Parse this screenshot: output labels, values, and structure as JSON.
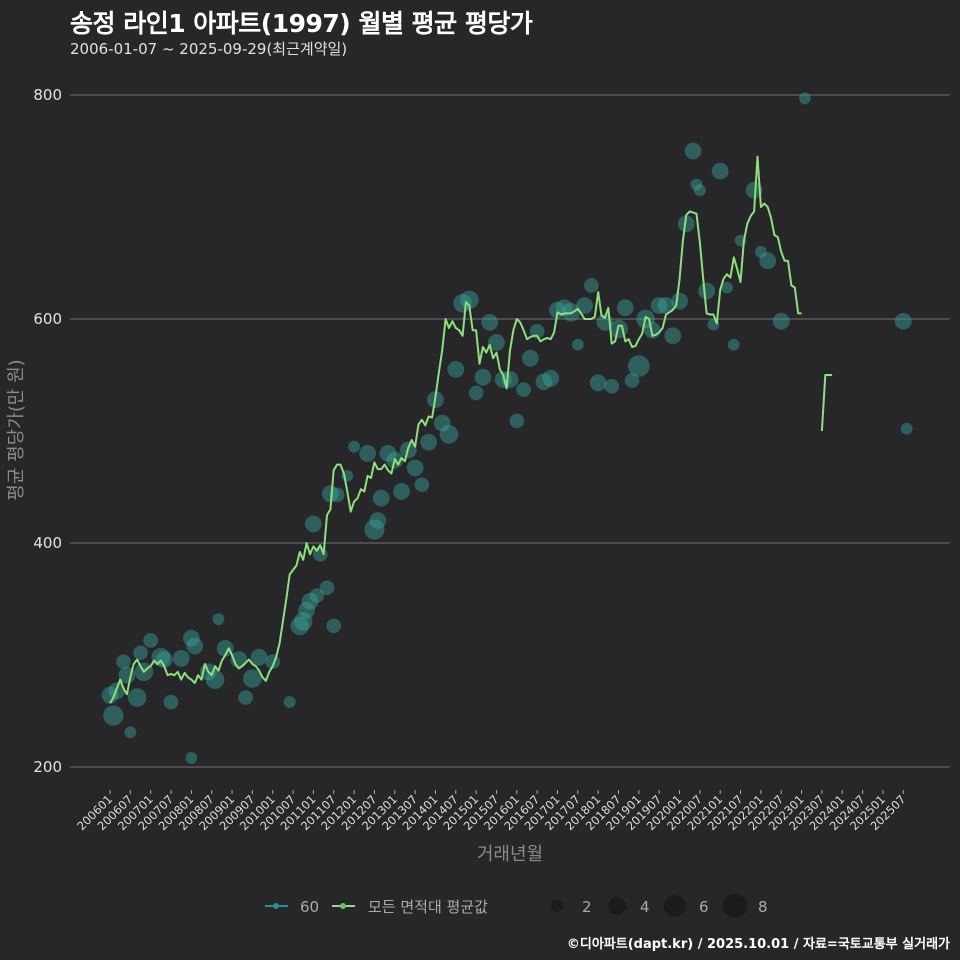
{
  "header": {
    "title": "송정 라인1 아파트(1997) 월별 평균 평당가",
    "subtitle": "2006-01-07 ~ 2025-09-29(최근계약일)"
  },
  "footer": {
    "credit": "©디아파트(dapt.kr) / 2025.10.01 / 자료=국토교통부 실거래가"
  },
  "colors": {
    "background": "#27272a",
    "line": "#8ee07c",
    "bubble": "#3aa39a",
    "grid": "#8a8a8a"
  },
  "legend": {
    "series": [
      {
        "label": "60",
        "color": "#2b8f8a"
      },
      {
        "label": "모든 면적대 평균값",
        "color": "#8ee07c"
      }
    ],
    "size_labels": [
      "2",
      "4",
      "6",
      "8"
    ]
  },
  "chart_data": {
    "type": "line",
    "title": "송정 라인1 아파트(1997) 월별 평균 평당가",
    "subtitle": "2006-01-07 ~ 2025-09-29(최근계약일)",
    "xlabel": "거래년월",
    "ylabel": "평균 평당가(만 원)",
    "ylim": [
      190,
      815
    ],
    "yticks": [
      200,
      400,
      600,
      800
    ],
    "xticks": [
      "200601",
      "200607",
      "200701",
      "200707",
      "200801",
      "200807",
      "200901",
      "200907",
      "201001",
      "201007",
      "201101",
      "201107",
      "201201",
      "201207",
      "201301",
      "201307",
      "201401",
      "201407",
      "201501",
      "201507",
      "201601",
      "201607",
      "201701",
      "201707",
      "201801",
      "201807",
      "201901",
      "201907",
      "202001",
      "202007",
      "202101",
      "202107",
      "202201",
      "202207",
      "202301",
      "202307",
      "202401",
      "202407",
      "202501",
      "202507"
    ],
    "grid": true,
    "legend_position": "bottom",
    "series": [
      {
        "name": "모든 면적대 평균값",
        "start": "2006-01",
        "values": [
          257,
          262,
          270,
          278,
          270,
          265,
          280,
          292,
          296,
          290,
          285,
          288,
          290,
          295,
          292,
          295,
          290,
          282,
          283,
          282,
          285,
          278,
          284,
          280,
          278,
          275,
          282,
          278,
          292,
          285,
          282,
          290,
          286,
          295,
          300,
          306,
          300,
          292,
          288,
          290,
          293,
          296,
          292,
          290,
          286,
          280,
          277,
          285,
          290,
          298,
          310,
          330,
          350,
          372,
          376,
          380,
          392,
          385,
          400,
          390,
          397,
          393,
          398,
          390,
          425,
          430,
          465,
          470,
          470,
          462,
          446,
          428,
          437,
          440,
          448,
          446,
          460,
          458,
          472,
          466,
          466,
          470,
          465,
          462,
          475,
          470,
          476,
          473,
          485,
          492,
          486,
          506,
          510,
          505,
          513,
          512,
          530,
          552,
          572,
          600,
          592,
          598,
          592,
          590,
          585,
          615,
          612,
          590,
          590,
          560,
          575,
          570,
          577,
          565,
          570,
          555,
          550,
          538,
          572,
          590,
          600,
          597,
          590,
          582,
          584,
          585,
          585,
          580,
          582,
          583,
          582,
          588,
          606,
          604,
          605,
          605,
          605,
          607,
          609,
          605,
          600,
          600,
          600,
          602,
          624,
          603,
          601,
          610,
          578,
          580,
          594,
          594,
          580,
          582,
          575,
          576,
          582,
          587,
          602,
          600,
          585,
          586,
          588,
          592,
          604,
          606,
          608,
          612,
          635,
          670,
          693,
          696,
          695,
          694,
          668,
          635,
          605,
          604,
          604,
          596,
          626,
          636,
          640,
          637,
          655,
          645,
          633,
          670,
          685,
          692,
          696,
          745,
          700,
          703,
          700,
          690,
          675,
          673,
          660,
          652,
          652,
          630,
          628,
          605,
          605,
          null,
          null,
          null,
          null,
          null,
          500,
          550,
          550,
          550,
          null,
          null
        ],
        "color": "#8ee07c"
      },
      {
        "name": "60",
        "type": "scatter",
        "points": [
          {
            "x": "200601",
            "y": 264,
            "n": 3
          },
          {
            "x": "200602",
            "y": 246,
            "n": 5
          },
          {
            "x": "200603",
            "y": 268,
            "n": 3
          },
          {
            "x": "200605",
            "y": 294,
            "n": 2
          },
          {
            "x": "200606",
            "y": 282,
            "n": 3
          },
          {
            "x": "200607",
            "y": 231,
            "n": 1
          },
          {
            "x": "200609",
            "y": 262,
            "n": 4
          },
          {
            "x": "200610",
            "y": 302,
            "n": 2
          },
          {
            "x": "200611",
            "y": 285,
            "n": 4
          },
          {
            "x": "200701",
            "y": 313,
            "n": 2
          },
          {
            "x": "200704",
            "y": 298,
            "n": 4
          },
          {
            "x": "200705",
            "y": 296,
            "n": 3
          },
          {
            "x": "200707",
            "y": 258,
            "n": 2
          },
          {
            "x": "200710",
            "y": 297,
            "n": 3
          },
          {
            "x": "200801",
            "y": 315,
            "n": 3
          },
          {
            "x": "200801",
            "y": 208,
            "n": 1
          },
          {
            "x": "200802",
            "y": 308,
            "n": 3
          },
          {
            "x": "200806",
            "y": 285,
            "n": 3
          },
          {
            "x": "200808",
            "y": 278,
            "n": 4
          },
          {
            "x": "200809",
            "y": 332,
            "n": 1
          },
          {
            "x": "200811",
            "y": 306,
            "n": 3
          },
          {
            "x": "200903",
            "y": 296,
            "n": 3
          },
          {
            "x": "200905",
            "y": 262,
            "n": 2
          },
          {
            "x": "200907",
            "y": 279,
            "n": 4
          },
          {
            "x": "200909",
            "y": 298,
            "n": 3
          },
          {
            "x": "201001",
            "y": 294,
            "n": 2
          },
          {
            "x": "201006",
            "y": 258,
            "n": 1
          },
          {
            "x": "201009",
            "y": 326,
            "n": 4
          },
          {
            "x": "201010",
            "y": 330,
            "n": 4
          },
          {
            "x": "201011",
            "y": 340,
            "n": 3
          },
          {
            "x": "201012",
            "y": 348,
            "n": 3
          },
          {
            "x": "201101",
            "y": 417,
            "n": 3
          },
          {
            "x": "201102",
            "y": 353,
            "n": 2
          },
          {
            "x": "201103",
            "y": 390,
            "n": 2
          },
          {
            "x": "201105",
            "y": 360,
            "n": 2
          },
          {
            "x": "201106",
            "y": 444,
            "n": 3
          },
          {
            "x": "201107",
            "y": 326,
            "n": 2
          },
          {
            "x": "201108",
            "y": 443,
            "n": 2
          },
          {
            "x": "201111",
            "y": 460,
            "n": 1
          },
          {
            "x": "201201",
            "y": 486,
            "n": 1
          },
          {
            "x": "201205",
            "y": 480,
            "n": 3
          },
          {
            "x": "201207",
            "y": 412,
            "n": 5
          },
          {
            "x": "201208",
            "y": 420,
            "n": 3
          },
          {
            "x": "201209",
            "y": 440,
            "n": 3
          },
          {
            "x": "201211",
            "y": 480,
            "n": 3
          },
          {
            "x": "201301",
            "y": 474,
            "n": 3
          },
          {
            "x": "201303",
            "y": 446,
            "n": 3
          },
          {
            "x": "201305",
            "y": 483,
            "n": 3
          },
          {
            "x": "201307",
            "y": 467,
            "n": 3
          },
          {
            "x": "201309",
            "y": 452,
            "n": 2
          },
          {
            "x": "201311",
            "y": 490,
            "n": 3
          },
          {
            "x": "201401",
            "y": 528,
            "n": 3
          },
          {
            "x": "201403",
            "y": 507,
            "n": 3
          },
          {
            "x": "201405",
            "y": 497,
            "n": 4
          },
          {
            "x": "201407",
            "y": 555,
            "n": 3
          },
          {
            "x": "201409",
            "y": 614,
            "n": 4
          },
          {
            "x": "201411",
            "y": 617,
            "n": 4
          },
          {
            "x": "201501",
            "y": 534,
            "n": 2
          },
          {
            "x": "201503",
            "y": 548,
            "n": 3
          },
          {
            "x": "201505",
            "y": 597,
            "n": 3
          },
          {
            "x": "201507",
            "y": 579,
            "n": 3
          },
          {
            "x": "201509",
            "y": 546,
            "n": 3
          },
          {
            "x": "201511",
            "y": 546,
            "n": 3
          },
          {
            "x": "201601",
            "y": 509,
            "n": 2
          },
          {
            "x": "201603",
            "y": 537,
            "n": 2
          },
          {
            "x": "201605",
            "y": 565,
            "n": 3
          },
          {
            "x": "201607",
            "y": 589,
            "n": 2
          },
          {
            "x": "201609",
            "y": 544,
            "n": 3
          },
          {
            "x": "201611",
            "y": 547,
            "n": 3
          },
          {
            "x": "201701",
            "y": 608,
            "n": 3
          },
          {
            "x": "201703",
            "y": 610,
            "n": 3
          },
          {
            "x": "201705",
            "y": 606,
            "n": 4
          },
          {
            "x": "201707",
            "y": 577,
            "n": 1
          },
          {
            "x": "201709",
            "y": 612,
            "n": 3
          },
          {
            "x": "201711",
            "y": 630,
            "n": 2
          },
          {
            "x": "201801",
            "y": 543,
            "n": 3
          },
          {
            "x": "201803",
            "y": 597,
            "n": 3
          },
          {
            "x": "201805",
            "y": 540,
            "n": 2
          },
          {
            "x": "201807",
            "y": 591,
            "n": 4
          },
          {
            "x": "201809",
            "y": 610,
            "n": 3
          },
          {
            "x": "201811",
            "y": 545,
            "n": 2
          },
          {
            "x": "201901",
            "y": 558,
            "n": 6
          },
          {
            "x": "201903",
            "y": 600,
            "n": 4
          },
          {
            "x": "201905",
            "y": 590,
            "n": 3
          },
          {
            "x": "201907",
            "y": 612,
            "n": 3
          },
          {
            "x": "201909",
            "y": 612,
            "n": 3
          },
          {
            "x": "201911",
            "y": 585,
            "n": 3
          },
          {
            "x": "202001",
            "y": 616,
            "n": 3
          },
          {
            "x": "202003",
            "y": 685,
            "n": 3
          },
          {
            "x": "202005",
            "y": 750,
            "n": 3
          },
          {
            "x": "202006",
            "y": 720,
            "n": 1
          },
          {
            "x": "202007",
            "y": 715,
            "n": 1
          },
          {
            "x": "202009",
            "y": 625,
            "n": 3
          },
          {
            "x": "202011",
            "y": 595,
            "n": 1
          },
          {
            "x": "202101",
            "y": 732,
            "n": 3
          },
          {
            "x": "202103",
            "y": 628,
            "n": 1
          },
          {
            "x": "202105",
            "y": 577,
            "n": 1
          },
          {
            "x": "202107",
            "y": 670,
            "n": 1
          },
          {
            "x": "202111",
            "y": 715,
            "n": 3
          },
          {
            "x": "202201",
            "y": 660,
            "n": 1
          },
          {
            "x": "202203",
            "y": 652,
            "n": 3
          },
          {
            "x": "202207",
            "y": 598,
            "n": 3
          },
          {
            "x": "202302",
            "y": 797,
            "n": 1
          },
          {
            "x": "202507",
            "y": 598,
            "n": 3
          },
          {
            "x": "202508",
            "y": 502,
            "n": 1
          }
        ],
        "color": "#3aa39a"
      }
    ]
  }
}
